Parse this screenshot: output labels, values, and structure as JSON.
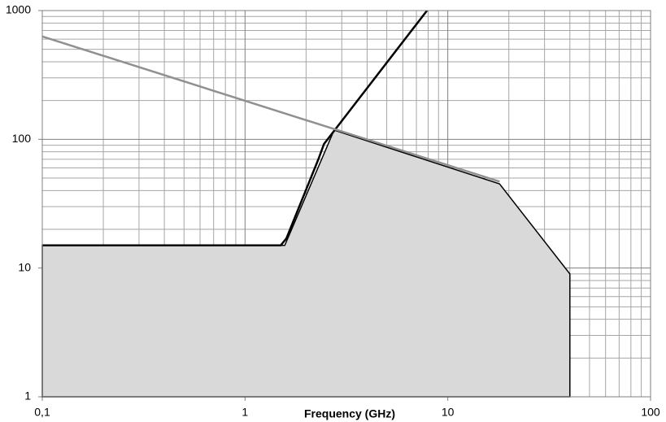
{
  "chart_data": {
    "type": "line",
    "x_label": "Frequency (GHz)",
    "xscale": "log",
    "yscale": "log",
    "grid": true,
    "minor_grid": true,
    "xlim": [
      0.1,
      100
    ],
    "ylim": [
      1,
      1000
    ],
    "xticks": [
      {
        "value": 0.1,
        "label": "0,1"
      },
      1,
      10,
      100
    ],
    "yticks": [
      1,
      10,
      100,
      1000
    ],
    "series": [
      {
        "color": "#000000",
        "fill": "#d9d9d9",
        "x": [
          0.1,
          0.1,
          1.57,
          2.75,
          18,
          40,
          40
        ],
        "values": [
          1,
          15,
          15,
          118,
          45,
          9,
          1
        ]
      },
      {
        "color": "#000000",
        "x": [
          0.1,
          1.5,
          1.6,
          2.3,
          2.45,
          7.9
        ],
        "values": [
          15,
          15,
          17,
          70,
          92,
          1000
        ]
      },
      {
        "color": "#909090",
        "x": [
          0.1,
          18
        ],
        "values": [
          630,
          47
        ]
      }
    ]
  }
}
